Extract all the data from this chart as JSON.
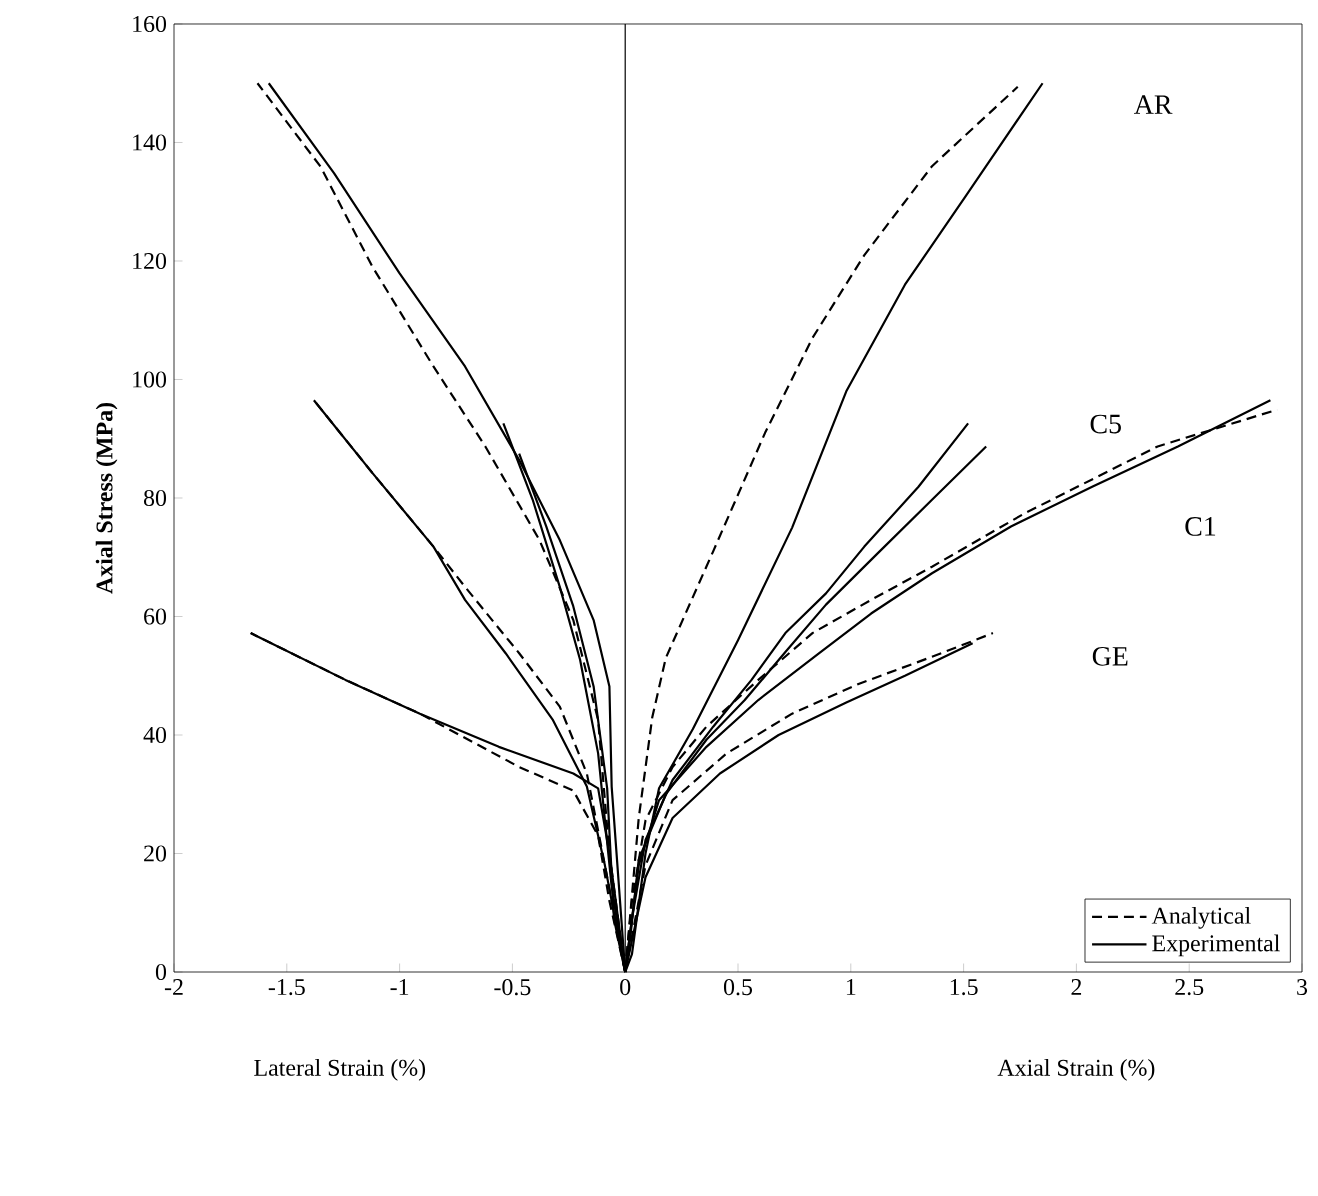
{
  "chart_data": {
    "type": "line",
    "xlabel": "Lateral Strain (%)",
    "ylabel": "Axial Stress (MPa)",
    "xlim": [
      -2,
      3
    ],
    "ylim": [
      0,
      160
    ],
    "xticks": [
      -2,
      -1.5,
      -1,
      -0.5,
      0,
      0.5,
      1,
      1.5,
      2,
      2.5,
      3
    ],
    "yticks": [
      0,
      20,
      40,
      60,
      80,
      100,
      120,
      140,
      160
    ],
    "grid": false,
    "legend": "bottom right",
    "marker": "none",
    "ref_lines": [
      {
        "axis": "x",
        "value": 0
      }
    ],
    "annotations": [
      "AR",
      "C5",
      "C1",
      "GE",
      "Axial Strain (%)"
    ],
    "series": [
      {
        "name": "Analytical",
        "color": "#000000",
        "line_style": "dashed",
        "x": [
          0,
          0.06,
          0.12,
          0.18,
          0.39,
          0.62,
          0.83,
          1.06,
          1.36,
          1.74
        ],
        "values": [
          0,
          26,
          43,
          53,
          71,
          91,
          107,
          121,
          136,
          149.4
        ]
      },
      {
        "name": "Experimental",
        "color": "#000000",
        "line_style": "solid",
        "x": [
          0,
          0.03,
          0.09,
          0.15,
          0.3,
          0.5,
          0.74,
          0.98,
          1.24,
          1.51,
          1.85
        ],
        "values": [
          0,
          3,
          20,
          31,
          41,
          56,
          75,
          98,
          116,
          131,
          150
        ]
      },
      {
        "color": "#000000",
        "line_style": "solid",
        "x": [
          0,
          0.03,
          0.09,
          0.21,
          0.39,
          0.56,
          0.71,
          0.89,
          1.06,
          1.3,
          1.52
        ],
        "values": [
          0,
          9,
          22.3,
          32.4,
          41.4,
          49.3,
          57.2,
          63.9,
          71.8,
          81.9,
          92.6
        ]
      },
      {
        "color": "#000000",
        "line_style": "solid",
        "x": [
          0,
          0.02,
          0.06,
          0.18,
          0.36,
          0.53,
          0.71,
          0.89,
          1.12,
          1.36,
          1.6
        ],
        "values": [
          0,
          5,
          19,
          30,
          39.2,
          45.9,
          54,
          62,
          70.7,
          79.7,
          88.7
        ]
      },
      {
        "color": "#000000",
        "line_style": "solid",
        "x": [
          0,
          0.06,
          0.15,
          0.36,
          0.59,
          0.86,
          1.09,
          1.36,
          1.71,
          2.07,
          2.45,
          2.86
        ],
        "values": [
          0,
          18,
          29,
          38,
          45.9,
          53.8,
          60.5,
          67.3,
          75.2,
          81.9,
          88.7,
          96.5
        ]
      },
      {
        "color": "#000000",
        "line_style": "dashed",
        "x": [
          0,
          0.03,
          0.09,
          0.21,
          0.36,
          0.59,
          0.83,
          1.09,
          1.36,
          1.77,
          2.36,
          2.89
        ],
        "values": [
          0,
          12,
          25.6,
          34.6,
          41.4,
          49.3,
          57.2,
          62.8,
          68.4,
          77.4,
          88.7,
          94.9
        ]
      },
      {
        "color": "#000000",
        "line_style": "dashed",
        "x": [
          0,
          0.09,
          0.21,
          0.45,
          0.74,
          1.04,
          1.36,
          1.63
        ],
        "values": [
          0,
          18,
          29,
          36.9,
          43.6,
          48.7,
          53.2,
          57.2
        ]
      },
      {
        "color": "#000000",
        "line_style": "solid",
        "x": [
          0,
          0.09,
          0.21,
          0.42,
          0.68,
          0.98,
          1.24,
          1.54
        ],
        "values": [
          0,
          16,
          26,
          33.5,
          40,
          45.5,
          50,
          55.5
        ]
      },
      {
        "color": "#000000",
        "line_style": "solid",
        "x": [
          0,
          -0.06,
          -0.07,
          -0.14,
          -0.29,
          -0.47,
          -0.71,
          -1.0,
          -1.29,
          -1.58
        ],
        "values": [
          0,
          31.3,
          48.2,
          59.4,
          72.9,
          86.4,
          102.2,
          117.9,
          134.8,
          150
        ]
      },
      {
        "color": "#000000",
        "line_style": "dashed",
        "x": [
          0,
          -0.07,
          -0.12,
          -0.23,
          -0.38,
          -0.62,
          -0.85,
          -1.12,
          -1.35,
          -1.63
        ],
        "values": [
          0,
          20,
          42.5,
          59.4,
          72.9,
          88.7,
          102.2,
          119,
          135.9,
          150
        ]
      },
      {
        "color": "#000000",
        "line_style": "solid",
        "x": [
          0,
          -0.06,
          -0.12,
          -0.2,
          -0.29,
          -0.41,
          -0.54
        ],
        "values": [
          0,
          14.4,
          36.9,
          52.7,
          65,
          79.7,
          92.6
        ]
      },
      {
        "color": "#000000",
        "line_style": "solid",
        "x": [
          0,
          -0.05,
          -0.08,
          -0.14,
          -0.23,
          -0.35,
          -0.47
        ],
        "values": [
          0,
          9,
          31,
          48.2,
          61.7,
          75.2,
          87.5
        ]
      },
      {
        "color": "#000000",
        "line_style": "solid",
        "x": [
          0,
          -0.09,
          -0.17,
          -0.32,
          -0.53,
          -0.71,
          -0.85,
          -1.12,
          -1.38
        ],
        "values": [
          0,
          18,
          31.3,
          42.5,
          53.8,
          62.8,
          71.8,
          84.2,
          96.5
        ]
      },
      {
        "color": "#000000",
        "line_style": "dashed",
        "x": [
          0,
          -0.1,
          -0.17,
          -0.29,
          -0.47,
          -0.71,
          -0.85,
          -1.12,
          -1.38
        ],
        "values": [
          0,
          20,
          33.5,
          44.8,
          53.8,
          65,
          71.8,
          84.2,
          96.5
        ]
      },
      {
        "color": "#000000",
        "line_style": "solid",
        "x": [
          0,
          -0.07,
          -0.12,
          -0.23,
          -0.56,
          -0.91,
          -1.24,
          -1.66
        ],
        "values": [
          0,
          20,
          31,
          33.5,
          38,
          43.6,
          49.3,
          57.2
        ]
      },
      {
        "color": "#000000",
        "line_style": "dashed",
        "x": [
          0,
          -0.07,
          -0.12,
          -0.23,
          -0.47,
          -0.91,
          -1.24,
          -1.66
        ],
        "values": [
          0,
          12,
          23,
          30.6,
          34.6,
          43.6,
          49.3,
          57.2
        ]
      }
    ]
  }
}
